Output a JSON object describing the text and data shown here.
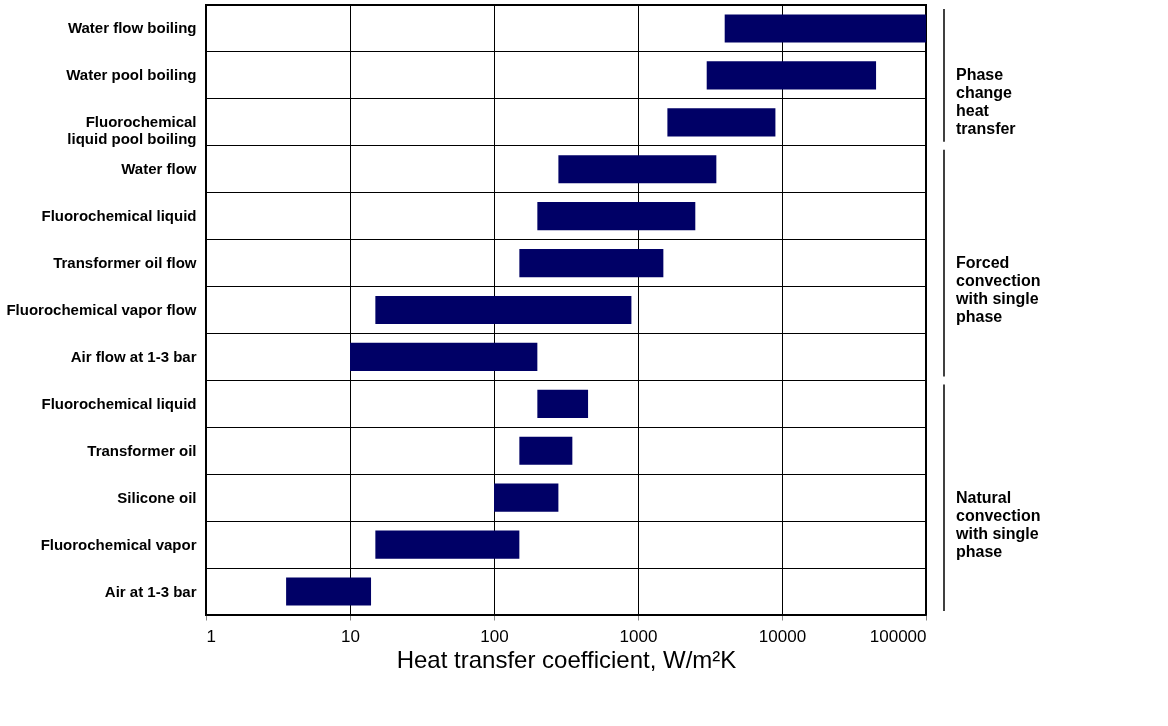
{
  "chart_data": {
    "type": "bar",
    "orientation": "horizontal",
    "log": "x",
    "grid": true,
    "categories": [
      "Water flow boiling",
      "Water pool boiling",
      "Fluorochemical\nliquid pool boiling",
      "Water flow",
      "Fluorochemical liquid",
      "Transformer oil flow",
      "Fluorochemical vapor flow",
      "Air flow at 1-3 bar",
      "Fluorochemical liquid",
      "Transformer oil",
      "Silicone oil",
      "Fluorochemical vapor",
      "Air at 1-3 bar"
    ],
    "base": [
      4000,
      3000,
      1600,
      280,
      200,
      150,
      15,
      10,
      200,
      150,
      100,
      15,
      3.6
    ],
    "values": [
      96000,
      42000,
      7400,
      3220,
      2300,
      1350,
      885,
      190,
      250,
      200,
      180,
      135,
      10.4
    ],
    "color": "#000066",
    "xlim": [
      1,
      100000
    ],
    "xticks": [
      1,
      10,
      100,
      1000,
      10000,
      100000
    ],
    "xlabel": "Heat transfer coefficient, W/m²K",
    "annotations": [
      "Phase\nchange\nheat\ntransfer",
      "Forced\nconvection\nwith single\nphase",
      "Natural\nconvection\nwith single\nphase"
    ]
  }
}
